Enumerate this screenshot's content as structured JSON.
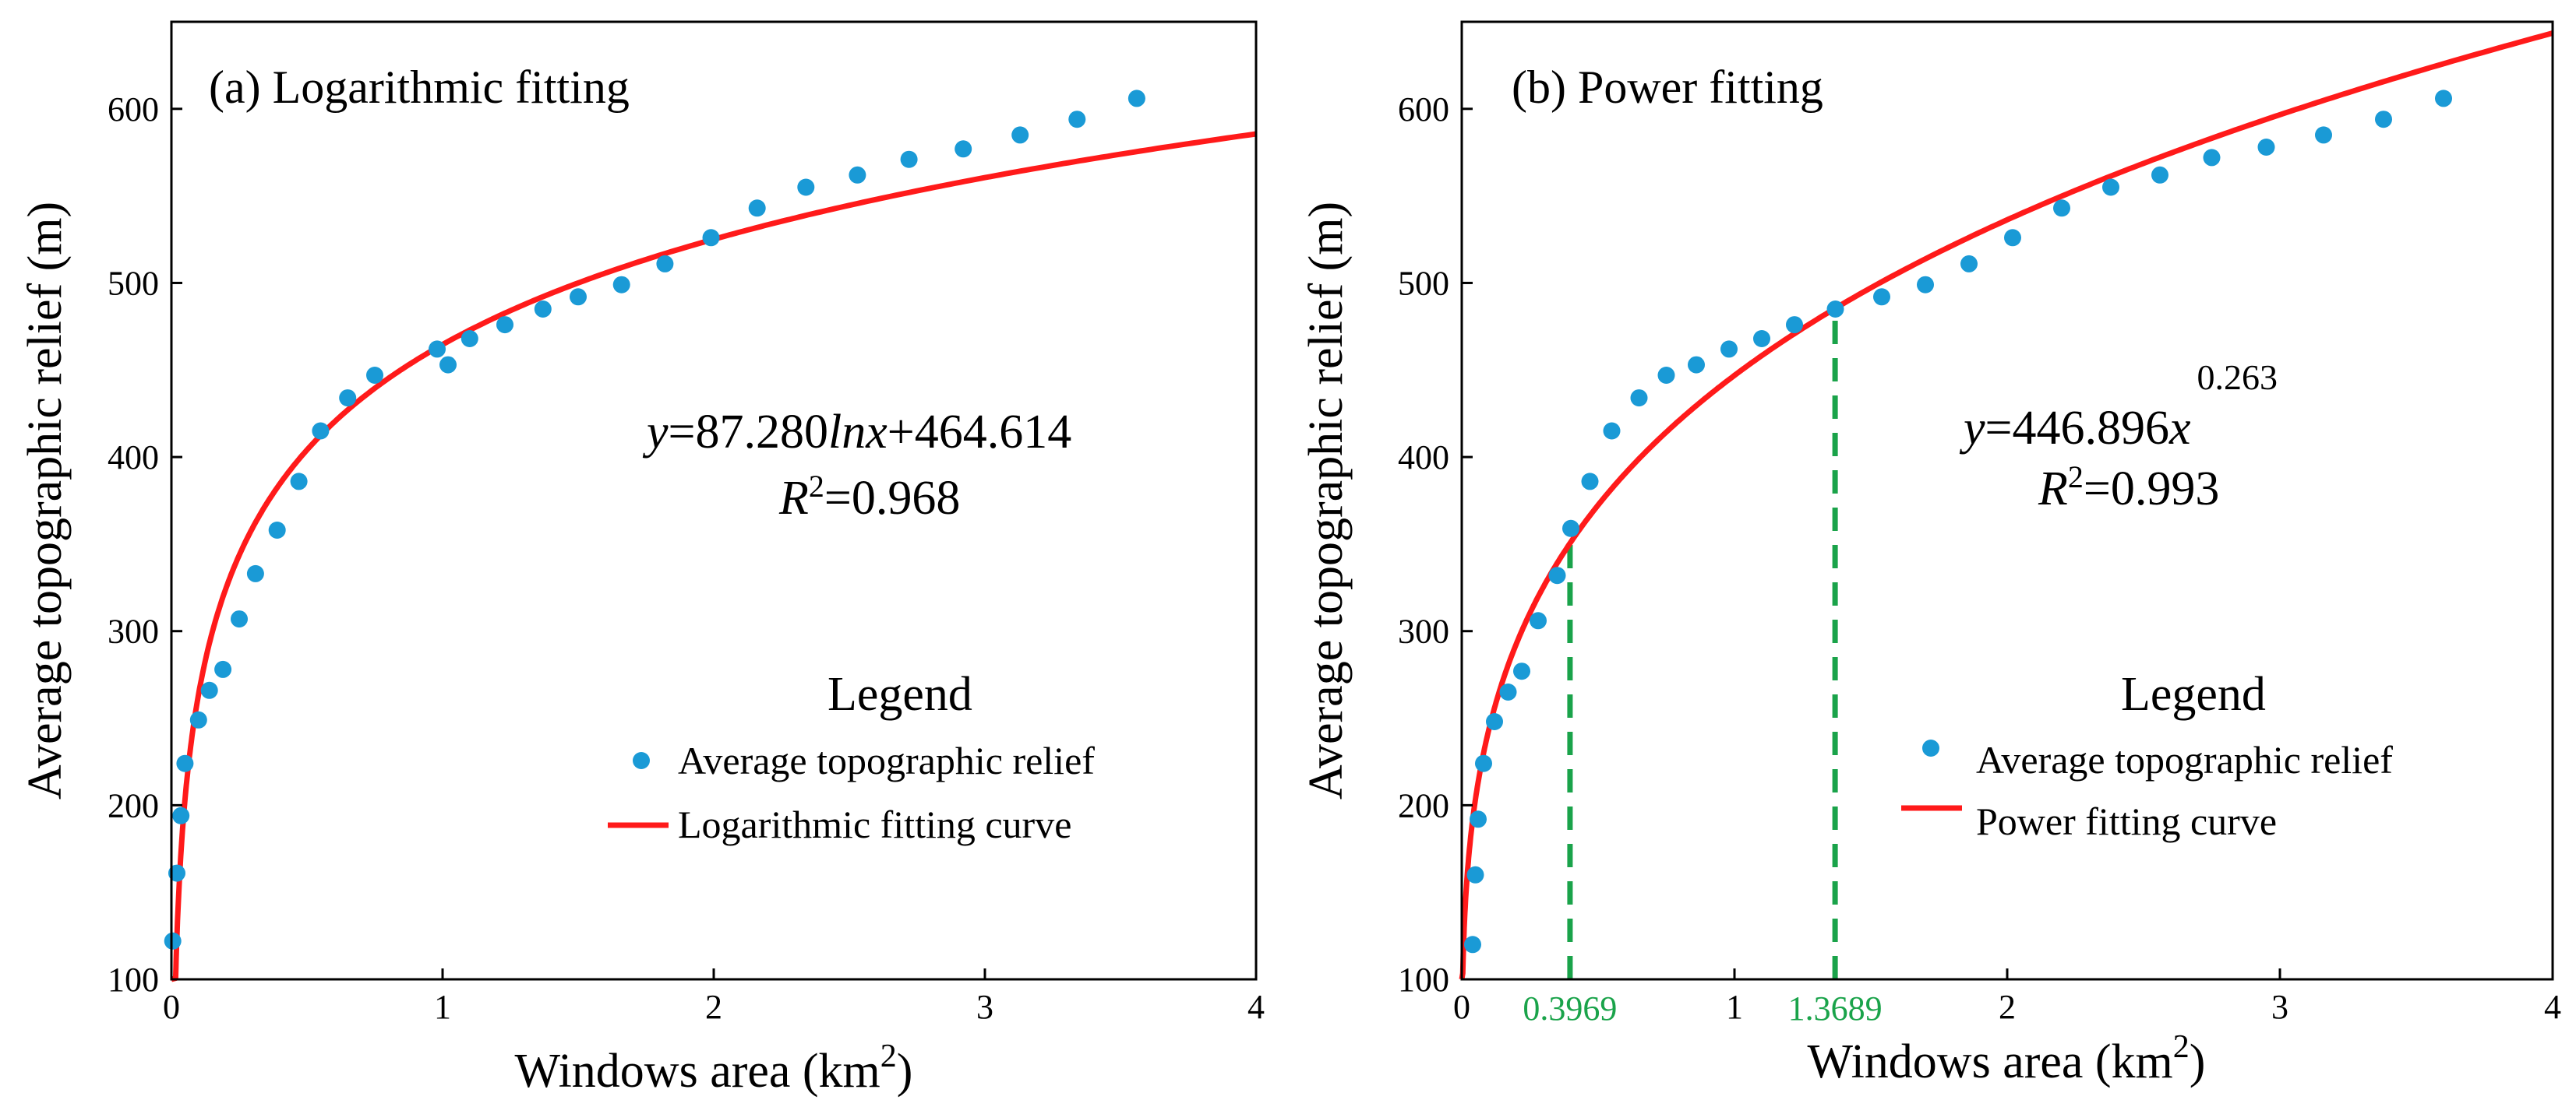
{
  "colors": {
    "points": "#1a9ad6",
    "curve": "#ff1a1a",
    "marker": "#1aa34a",
    "axis": "#000000"
  },
  "chart_data": [
    {
      "id": "a",
      "type": "scatter",
      "title": "(a) Logarithmic fitting",
      "xlabel": "Windows area (km",
      "xlabel_sup": "2",
      "xlabel_end": ")",
      "ylabel": "Average topographic relief (m)",
      "xlim": [
        0,
        4
      ],
      "ylim": [
        100,
        650
      ],
      "xticks": [
        0,
        1,
        2,
        3,
        4
      ],
      "yticks": [
        100,
        200,
        300,
        400,
        500,
        600
      ],
      "series": [
        {
          "name": "Average topographic relief",
          "kind": "points",
          "x": [
            0.005,
            0.02,
            0.035,
            0.05,
            0.1,
            0.14,
            0.19,
            0.25,
            0.31,
            0.39,
            0.47,
            0.55,
            0.65,
            0.75,
            0.98,
            1.02,
            1.1,
            1.23,
            1.37,
            1.5,
            1.66,
            1.82,
            1.99,
            2.16,
            2.34,
            2.53,
            2.72,
            2.92,
            3.13,
            3.34,
            3.56
          ],
          "y": [
            122,
            161,
            194,
            224,
            249,
            266,
            278,
            307,
            333,
            358,
            386,
            415,
            434,
            447,
            462,
            453,
            468,
            476,
            485,
            492,
            499,
            511,
            526,
            543,
            555,
            562,
            571,
            577,
            585,
            594,
            606
          ]
        },
        {
          "name": "Logarithmic fitting  curve",
          "kind": "curve",
          "model": "log",
          "a": 87.28,
          "b": 464.614
        }
      ],
      "equation": {
        "y": "y",
        "eq1": "=87.280",
        "ln": "ln",
        "x": "x",
        "eq2": "+464.614",
        "r": "R",
        "r_sup": "2",
        "r_val": "=0.968"
      },
      "legend": {
        "title": "Legend",
        "items": [
          "Average topographic relief",
          "Logarithmic fitting  curve"
        ]
      }
    },
    {
      "id": "b",
      "type": "scatter",
      "title": "(b) Power fitting",
      "xlabel": "Windows area (km",
      "xlabel_sup": "2",
      "xlabel_end": ")",
      "ylabel": "Average topographic relief (m)",
      "xlim": [
        0,
        4
      ],
      "ylim": [
        100,
        650
      ],
      "xticks": [
        0,
        1,
        2,
        3,
        4
      ],
      "yticks": [
        100,
        200,
        300,
        400,
        500,
        600
      ],
      "series": [
        {
          "name": "Average topographic relief",
          "kind": "points",
          "x": [
            0.04,
            0.05,
            0.06,
            0.08,
            0.12,
            0.17,
            0.22,
            0.28,
            0.35,
            0.4,
            0.47,
            0.55,
            0.65,
            0.75,
            0.86,
            0.98,
            1.1,
            1.22,
            1.37,
            1.54,
            1.7,
            1.86,
            2.02,
            2.2,
            2.38,
            2.56,
            2.75,
            2.95,
            3.16,
            3.38,
            3.6
          ],
          "y": [
            120,
            160,
            192,
            224,
            248,
            265,
            277,
            306,
            332,
            359,
            386,
            415,
            434,
            447,
            453,
            462,
            468,
            476,
            485,
            492,
            499,
            511,
            526,
            543,
            555,
            562,
            572,
            578,
            585,
            594,
            606
          ]
        },
        {
          "name": "Power fitting  curve",
          "kind": "curve",
          "model": "power",
          "a": 446.896,
          "b": 0.263
        }
      ],
      "equation": {
        "y": "y",
        "eq1": "=446.896",
        "x": "x",
        "exp": "0.263",
        "r": "R",
        "r_sup": "2",
        "r_val": "=0.993"
      },
      "markers": [
        {
          "x": 0.3969,
          "label": "0.3969"
        },
        {
          "x": 1.3689,
          "label": "1.3689"
        }
      ],
      "legend": {
        "title": "Legend",
        "items": [
          "Average topographic relief",
          "Power fitting  curve"
        ]
      }
    }
  ]
}
